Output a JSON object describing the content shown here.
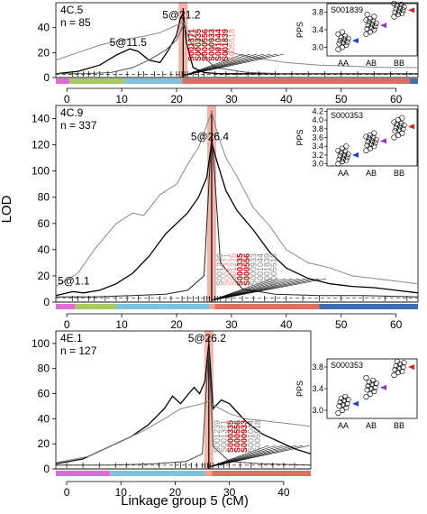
{
  "figure": {
    "ylabel": "LOD",
    "xlabel": "Linkage group 5 (cM)"
  },
  "chart_data": [
    {
      "type": "line",
      "panel_label": "4C.5",
      "n_label": "n = 85",
      "ylim": [
        0,
        60
      ],
      "xlim": [
        -2,
        64
      ],
      "yticks": [
        0,
        20,
        40
      ],
      "xticks": [
        0,
        10,
        20,
        30,
        40,
        50,
        60
      ],
      "peak_labels": [
        {
          "text": "5@21.2",
          "x": 21.2,
          "y": 46
        },
        {
          "text": "5@11.5",
          "x": 11.5,
          "y": 24
        }
      ],
      "highlight_x": 21.2,
      "threshold": 2.5,
      "markers": [
        {
          "name": "S001371",
          "color": "#cc0000"
        },
        {
          "name": "S000335",
          "color": "#cc0000"
        },
        {
          "name": "S000556",
          "color": "#cc0000"
        },
        {
          "name": "S000933",
          "color": "#cc0000"
        },
        {
          "name": "S001044",
          "color": "#cc0000"
        },
        {
          "name": "S001839",
          "color": "#cc0000"
        },
        {
          "name": "S005518",
          "color": "#f28b82"
        }
      ],
      "series": [
        {
          "name": "",
          "color": "#000000",
          "x": [
            -2,
            2,
            6,
            9,
            11.5,
            13,
            15,
            17,
            18.5,
            20,
            20.6,
            21.2,
            21.8,
            23,
            25,
            28,
            32,
            38,
            45,
            52,
            58,
            64
          ],
          "y": [
            3,
            5,
            10,
            18,
            23,
            21,
            14,
            12,
            22,
            34,
            46,
            52,
            28,
            8,
            4,
            3,
            3,
            3,
            3,
            3,
            3,
            3
          ]
        },
        {
          "name": "",
          "color": "#888888",
          "x": [
            -2,
            2,
            6,
            10,
            14,
            17,
            19,
            20.5,
            21.2,
            22,
            24,
            28,
            34,
            40,
            46,
            52,
            58,
            64
          ],
          "y": [
            14,
            20,
            26,
            30,
            33,
            36,
            40,
            43,
            45,
            38,
            30,
            22,
            16,
            12,
            10,
            9,
            8,
            8
          ]
        },
        {
          "name": "",
          "color": "#555555",
          "x": [
            -2,
            3,
            8,
            12,
            15,
            18,
            20,
            21.2,
            23,
            27,
            33,
            40,
            48,
            56,
            64
          ],
          "y": [
            3,
            3,
            4,
            8,
            14,
            22,
            30,
            42,
            25,
            8,
            4,
            3,
            3,
            3,
            3
          ]
        }
      ],
      "ticks_x": [
        1,
        2,
        3,
        4,
        5,
        6,
        7.5,
        9,
        11,
        13,
        14,
        16,
        17.5,
        19,
        20,
        20.5,
        21,
        21.2,
        21.5,
        22,
        23,
        24,
        25,
        27,
        29,
        31,
        33,
        35,
        38,
        41,
        44,
        47,
        50,
        53,
        56,
        59,
        62
      ],
      "genome_bar": [
        {
          "from": -2,
          "to": 0.5,
          "color": "#e36ad6"
        },
        {
          "from": 0.5,
          "to": 10.5,
          "color": "#a9c961"
        },
        {
          "from": 10.5,
          "to": 21,
          "color": "#7ec3dd"
        },
        {
          "from": 21,
          "to": 62.5,
          "color": "#e06f62"
        },
        {
          "from": 62.5,
          "to": 64,
          "color": "#3a6fb0"
        }
      ],
      "inset": {
        "marker": "S001839",
        "ylabel": "PPS",
        "yticks": [
          3.0,
          3.4,
          3.8
        ],
        "ylim": [
          2.8,
          4.0
        ],
        "groups": [
          "AA",
          "AB",
          "BB"
        ],
        "means": [
          3.15,
          3.5,
          3.85
        ],
        "mean_colors": [
          "#1f3fd0",
          "#9b30d0",
          "#e02020"
        ],
        "points": {
          "AA": [
            2.95,
            3.0,
            3.05,
            3.08,
            3.1,
            3.12,
            3.15,
            3.18,
            3.2,
            3.22,
            3.25,
            3.3,
            3.35
          ],
          "AB": [
            3.3,
            3.35,
            3.4,
            3.42,
            3.45,
            3.48,
            3.5,
            3.52,
            3.55,
            3.58,
            3.6,
            3.62,
            3.65,
            3.7,
            3.75
          ],
          "BB": [
            3.7,
            3.75,
            3.78,
            3.8,
            3.82,
            3.85,
            3.88,
            3.9,
            3.92,
            3.95,
            3.98,
            4.0
          ]
        }
      }
    },
    {
      "type": "line",
      "panel_label": "4C.9",
      "n_label": "n = 337",
      "ylim": [
        0,
        150
      ],
      "xlim": [
        -2,
        64
      ],
      "yticks": [
        0,
        20,
        40,
        60,
        80,
        100,
        120,
        140
      ],
      "xticks": [
        0,
        10,
        20,
        30,
        40,
        50,
        60
      ],
      "peak_labels": [
        {
          "text": "5@26.4",
          "x": 26.4,
          "y": 122
        },
        {
          "text": "5@1.1",
          "x": 1.1,
          "y": 12
        }
      ],
      "highlight_x": 26.4,
      "threshold": 3,
      "markers": [
        {
          "name": "S001239",
          "color": "#888888"
        },
        {
          "name": "S001371",
          "color": "#f28b82"
        },
        {
          "name": "S001275",
          "color": "#f28b82"
        },
        {
          "name": "S000335",
          "color": "#cc0000"
        },
        {
          "name": "S000556",
          "color": "#cc0000"
        },
        {
          "name": "S000933",
          "color": "#888888"
        },
        {
          "name": "S001044",
          "color": "#888888"
        },
        {
          "name": "S001839",
          "color": "#888888"
        },
        {
          "name": "S005518",
          "color": "#888888"
        }
      ],
      "series": [
        {
          "name": "",
          "color": "#000000",
          "x": [
            -2,
            1.1,
            3,
            6,
            9,
            12,
            15,
            18,
            20,
            22,
            24,
            25.5,
            26.4,
            27.3,
            29,
            31,
            34,
            37,
            40,
            44,
            48,
            52,
            56,
            60,
            64
          ],
          "y": [
            5,
            8,
            7,
            9,
            14,
            22,
            35,
            52,
            60,
            68,
            80,
            95,
            122,
            108,
            85,
            70,
            55,
            38,
            26,
            18,
            14,
            12,
            11,
            9,
            7
          ]
        },
        {
          "name": "",
          "color": "#888888",
          "x": [
            -2,
            2,
            5,
            9,
            12,
            14,
            17,
            20,
            22,
            24,
            25.5,
            26.4,
            27.5,
            29,
            31,
            34,
            37,
            40,
            44,
            48,
            52,
            56,
            60,
            64
          ],
          "y": [
            12,
            22,
            40,
            60,
            68,
            66,
            82,
            90,
            105,
            118,
            135,
            145,
            128,
            110,
            96,
            72,
            58,
            40,
            30,
            26,
            20,
            18,
            16,
            14
          ]
        },
        {
          "name": "",
          "color": "#222222",
          "x": [
            -2,
            5,
            12,
            18,
            22,
            25,
            26.4,
            28,
            32,
            38,
            46,
            54,
            64
          ],
          "y": [
            4,
            4,
            5,
            6,
            9,
            20,
            130,
            30,
            10,
            6,
            5,
            5,
            4
          ]
        }
      ],
      "ticks_x": [
        1,
        2,
        4,
        5,
        7,
        9,
        11,
        13,
        15,
        17,
        19,
        21,
        22,
        23,
        24,
        25,
        25.5,
        26,
        26.4,
        27,
        27.5,
        28,
        29,
        30,
        32,
        34,
        36,
        38,
        40,
        43,
        46,
        50,
        54,
        58,
        62
      ],
      "genome_bar": [
        {
          "from": -2,
          "to": 1.5,
          "color": "#e36ad6"
        },
        {
          "from": 1.5,
          "to": 9,
          "color": "#a9c961"
        },
        {
          "from": 9,
          "to": 17,
          "color": "#7ec3dd"
        },
        {
          "from": 17,
          "to": 26,
          "color": "#7ec3dd"
        },
        {
          "from": 26,
          "to": 27,
          "color": "#f4a393"
        },
        {
          "from": 27,
          "to": 46,
          "color": "#e06f62"
        },
        {
          "from": 46,
          "to": 64,
          "color": "#3a6fb0"
        }
      ],
      "inset": {
        "marker": "S000353",
        "ylabel": "PPS",
        "yticks": [
          3.0,
          3.2,
          3.4,
          3.6,
          3.8,
          4.0,
          4.2
        ],
        "ylim": [
          2.95,
          4.25
        ],
        "groups": [
          "AA",
          "AB",
          "BB"
        ],
        "means": [
          3.2,
          3.52,
          3.85
        ],
        "mean_colors": [
          "#1f3fd0",
          "#9b30d0",
          "#e02020"
        ],
        "points": {
          "AA": [
            3.0,
            3.05,
            3.08,
            3.1,
            3.12,
            3.15,
            3.18,
            3.2,
            3.22,
            3.25,
            3.28,
            3.3,
            3.35,
            3.4
          ],
          "AB": [
            3.3,
            3.35,
            3.4,
            3.42,
            3.45,
            3.48,
            3.5,
            3.52,
            3.55,
            3.58,
            3.6,
            3.62,
            3.65,
            3.7
          ],
          "BB": [
            3.6,
            3.65,
            3.7,
            3.75,
            3.78,
            3.8,
            3.82,
            3.85,
            3.88,
            3.9,
            3.92,
            3.95,
            4.0,
            4.05
          ]
        }
      }
    },
    {
      "type": "line",
      "panel_label": "4E.1",
      "n_label": "n = 127",
      "ylim": [
        0,
        110
      ],
      "xlim": [
        -2,
        45
      ],
      "yticks": [
        0,
        20,
        40,
        60,
        80,
        100
      ],
      "xticks": [
        0,
        10,
        20,
        30,
        40
      ],
      "peak_labels": [
        {
          "text": "5@26.2",
          "x": 26.2,
          "y": 100
        }
      ],
      "highlight_x": 26.2,
      "threshold": 3,
      "markers": [
        {
          "name": "S001239",
          "color": "#888888"
        },
        {
          "name": "S001371",
          "color": "#888888"
        },
        {
          "name": "S000335",
          "color": "#cc0000"
        },
        {
          "name": "S000556",
          "color": "#cc0000"
        },
        {
          "name": "S000933",
          "color": "#cc0000"
        },
        {
          "name": "S001044",
          "color": "#888888"
        },
        {
          "name": "S005518",
          "color": "#888888"
        }
      ],
      "series": [
        {
          "name": "",
          "color": "#000000",
          "x": [
            -2,
            3,
            8,
            12,
            15,
            18,
            19.5,
            21,
            22.5,
            23.5,
            24.5,
            25.5,
            26.2,
            27,
            28.5,
            30,
            33,
            36,
            39,
            42,
            45
          ],
          "y": [
            4,
            8,
            18,
            26,
            35,
            48,
            58,
            52,
            60,
            65,
            60,
            70,
            100,
            48,
            55,
            52,
            38,
            28,
            22,
            16,
            12
          ]
        },
        {
          "name": "",
          "color": "#888888",
          "x": [
            -2,
            4,
            9,
            14,
            18,
            21,
            23,
            25,
            26.2,
            27.5,
            30,
            33,
            37,
            41,
            45
          ],
          "y": [
            5,
            10,
            20,
            30,
            40,
            48,
            50,
            52,
            54,
            50,
            44,
            40,
            38,
            36,
            34
          ]
        },
        {
          "name": "",
          "color": "#444444",
          "x": [
            -2,
            8,
            16,
            22,
            25,
            26.2,
            27,
            30,
            36,
            45
          ],
          "y": [
            3,
            3,
            4,
            6,
            12,
            95,
            18,
            6,
            4,
            3
          ]
        }
      ],
      "ticks_x": [
        0,
        3,
        6,
        9,
        11,
        14,
        17,
        20,
        21,
        22,
        23,
        24,
        25,
        25.5,
        26,
        26.2,
        26.5,
        27,
        28,
        29,
        30,
        32,
        34,
        36,
        38,
        40,
        42
      ],
      "genome_bar": [
        {
          "from": -2,
          "to": 8,
          "color": "#e36ad6"
        },
        {
          "from": 8,
          "to": 25.5,
          "color": "#7ec3dd"
        },
        {
          "from": 25.5,
          "to": 26.8,
          "color": "#f4a393"
        },
        {
          "from": 26.8,
          "to": 45,
          "color": "#e06f62"
        }
      ],
      "inset": {
        "marker": "S000353",
        "ylabel": "PPS",
        "yticks": [
          3.0,
          3.4,
          3.8
        ],
        "ylim": [
          2.85,
          3.95
        ],
        "groups": [
          "AA",
          "AB",
          "BB"
        ],
        "means": [
          3.12,
          3.42,
          3.8
        ],
        "mean_colors": [
          "#1f3fd0",
          "#9b30d0",
          "#e02020"
        ],
        "points": {
          "AA": [
            2.95,
            3.0,
            3.05,
            3.08,
            3.1,
            3.12,
            3.15,
            3.18,
            3.2,
            3.22,
            3.25
          ],
          "AB": [
            3.25,
            3.3,
            3.35,
            3.38,
            3.4,
            3.42,
            3.45,
            3.48,
            3.5,
            3.52,
            3.55,
            3.6
          ],
          "BB": [
            3.65,
            3.7,
            3.72,
            3.75,
            3.78,
            3.8,
            3.82,
            3.85,
            3.88,
            3.9
          ]
        }
      }
    }
  ]
}
